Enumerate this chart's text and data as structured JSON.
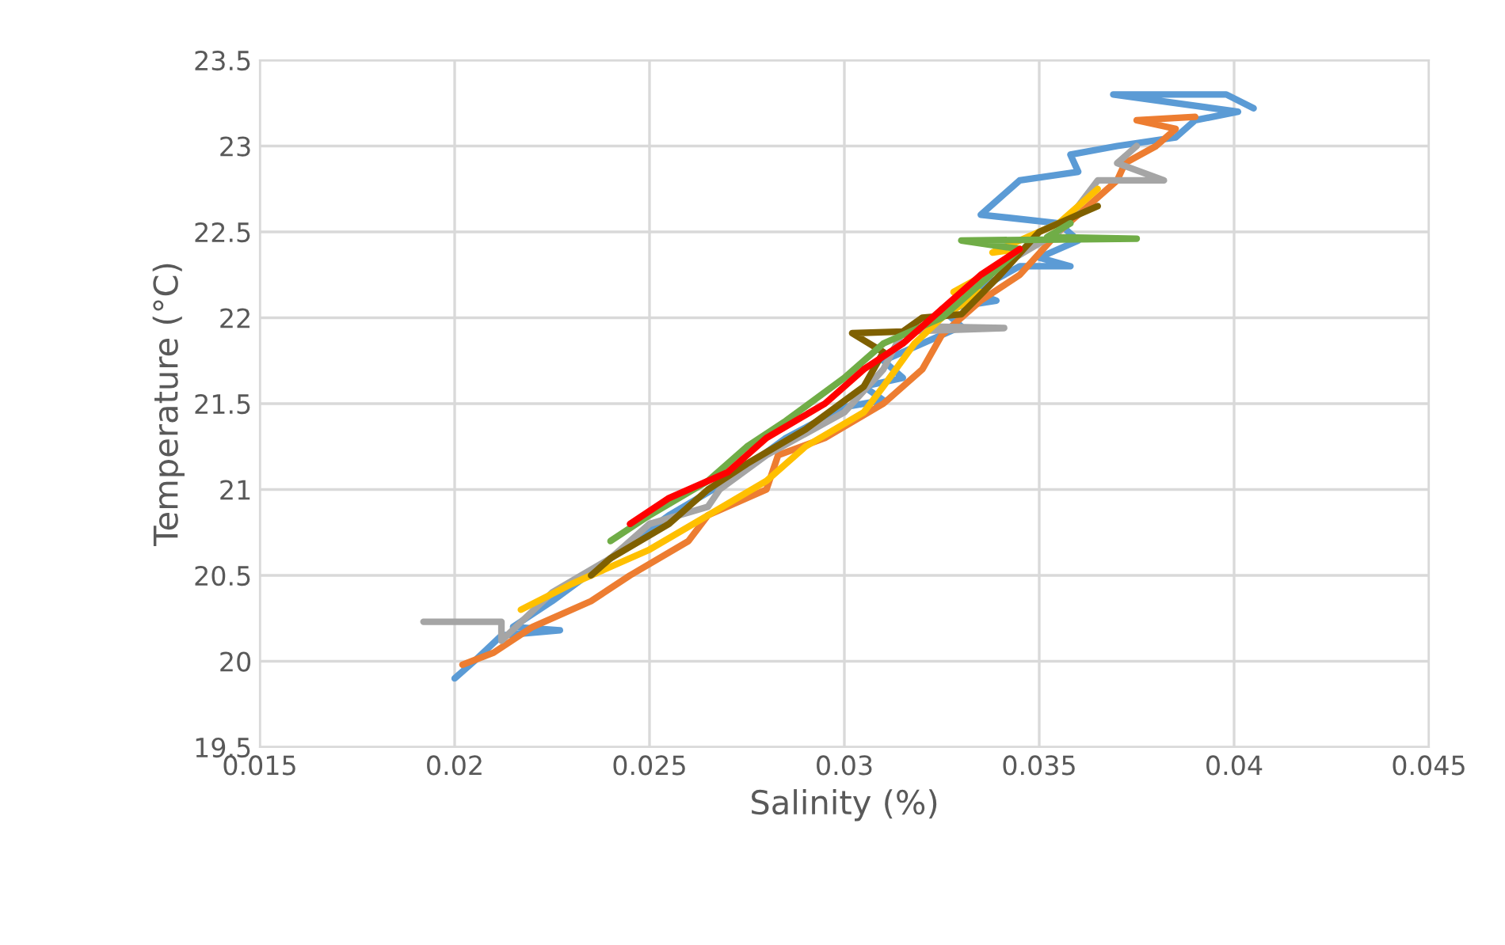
{
  "chart_data": {
    "type": "line",
    "xlabel": "Salinity (%)",
    "ylabel": "Temperature (°C)",
    "xlim": [
      0.015,
      0.045
    ],
    "xticks": [
      0.015,
      0.02,
      0.025,
      0.03,
      0.035,
      0.04,
      0.045
    ],
    "ylim": [
      19.5,
      23.5
    ],
    "yticks": [
      19.5,
      20,
      20.5,
      21,
      21.5,
      22,
      22.5,
      23,
      23.5
    ],
    "grid": true,
    "legend": false,
    "marker": "none",
    "line_style": "solid",
    "series": [
      {
        "color": "#5b9bd5",
        "x": [
          0.02,
          0.0205,
          0.0212,
          0.0227,
          0.0215,
          0.0225,
          0.024,
          0.0255,
          0.027,
          0.0285,
          0.03,
          0.031,
          0.0305,
          0.0315,
          0.031,
          0.033,
          0.0325,
          0.0339,
          0.0333,
          0.0345,
          0.0358,
          0.035,
          0.036,
          0.0355,
          0.0335,
          0.0345,
          0.036,
          0.0358,
          0.037,
          0.0385,
          0.039,
          0.0401,
          0.0369,
          0.0398,
          0.0405
        ],
        "values": [
          19.9,
          20.0,
          20.15,
          20.18,
          20.2,
          20.35,
          20.6,
          20.85,
          21.05,
          21.3,
          21.48,
          21.52,
          21.6,
          21.65,
          21.75,
          21.95,
          22.05,
          22.1,
          22.15,
          22.3,
          22.3,
          22.35,
          22.45,
          22.55,
          22.6,
          22.8,
          22.85,
          22.95,
          23.0,
          23.05,
          23.15,
          23.2,
          23.3,
          23.3,
          23.22
        ]
      },
      {
        "color": "#ed7d31",
        "x": [
          0.0202,
          0.021,
          0.022,
          0.0235,
          0.0245,
          0.026,
          0.0265,
          0.028,
          0.0283,
          0.0295,
          0.031,
          0.032,
          0.0325,
          0.0335,
          0.0345,
          0.0355,
          0.036,
          0.037,
          0.0372,
          0.038,
          0.0385,
          0.0375,
          0.039
        ],
        "values": [
          19.98,
          20.05,
          20.2,
          20.35,
          20.5,
          20.7,
          20.85,
          21.0,
          21.2,
          21.3,
          21.5,
          21.7,
          21.9,
          22.1,
          22.25,
          22.5,
          22.6,
          22.8,
          22.9,
          23.0,
          23.1,
          23.15,
          23.17
        ]
      },
      {
        "color": "#a5a5a5",
        "x": [
          0.0192,
          0.0212,
          0.0212,
          0.0225,
          0.024,
          0.025,
          0.0265,
          0.0268,
          0.028,
          0.03,
          0.031,
          0.0315,
          0.0341,
          0.032,
          0.033,
          0.034,
          0.0355,
          0.036,
          0.0365,
          0.0382,
          0.037,
          0.0375
        ],
        "values": [
          20.23,
          20.23,
          20.12,
          20.4,
          20.6,
          20.8,
          20.9,
          21.0,
          21.2,
          21.45,
          21.7,
          21.92,
          21.94,
          21.95,
          22.1,
          22.3,
          22.5,
          22.65,
          22.8,
          22.8,
          22.9,
          23.0
        ]
      },
      {
        "color": "#ffc000",
        "x": [
          0.0217,
          0.023,
          0.025,
          0.0265,
          0.028,
          0.029,
          0.0305,
          0.031,
          0.0318,
          0.0325,
          0.0335,
          0.0328,
          0.034,
          0.0345,
          0.0338,
          0.0355,
          0.0365
        ],
        "values": [
          20.3,
          20.45,
          20.65,
          20.85,
          21.05,
          21.25,
          21.45,
          21.6,
          21.85,
          22.0,
          22.15,
          22.15,
          22.3,
          22.4,
          22.38,
          22.55,
          22.75
        ]
      },
      {
        "color": "#7f6000",
        "x": [
          0.0235,
          0.024,
          0.0255,
          0.0265,
          0.0275,
          0.029,
          0.0305,
          0.031,
          0.0302,
          0.0315,
          0.032,
          0.033,
          0.034,
          0.035,
          0.036,
          0.0365
        ],
        "values": [
          20.5,
          20.6,
          20.8,
          21.0,
          21.15,
          21.35,
          21.6,
          21.8,
          21.91,
          21.92,
          22.0,
          22.02,
          22.25,
          22.5,
          22.6,
          22.65
        ]
      },
      {
        "color": "#70ad47",
        "x": [
          0.024,
          0.025,
          0.0265,
          0.0275,
          0.0285,
          0.03,
          0.031,
          0.0325,
          0.0335,
          0.0345,
          0.033,
          0.0375,
          0.0352,
          0.0358
        ],
        "values": [
          20.7,
          20.85,
          21.05,
          21.25,
          21.4,
          21.65,
          21.85,
          22.0,
          22.2,
          22.4,
          22.45,
          22.46,
          22.47,
          22.55
        ]
      },
      {
        "color": "#ff0000",
        "x": [
          0.0245,
          0.0255,
          0.027,
          0.028,
          0.0295,
          0.0305,
          0.0315,
          0.0325,
          0.0335,
          0.0345
        ],
        "values": [
          20.8,
          20.95,
          21.1,
          21.3,
          21.5,
          21.7,
          21.85,
          22.05,
          22.25,
          22.4
        ]
      }
    ]
  }
}
